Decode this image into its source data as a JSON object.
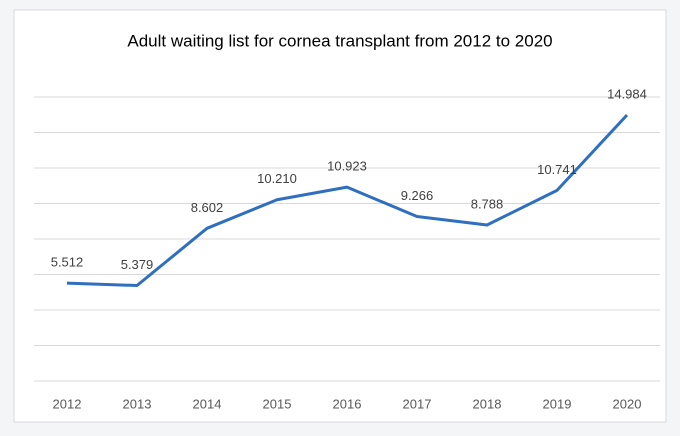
{
  "chart_data": {
    "type": "line",
    "title": "Adult waiting list for cornea transplant from 2012 to 2020",
    "categories": [
      "2012",
      "2013",
      "2014",
      "2015",
      "2016",
      "2017",
      "2018",
      "2019",
      "2020"
    ],
    "series": [
      {
        "color": "#2f6fbf",
        "values": [
          5.512,
          5.379,
          8.602,
          10.21,
          10.923,
          9.266,
          8.788,
          10.741,
          14.984
        ],
        "value_labels": [
          "5.512",
          "5.379",
          "8.602",
          "10.210",
          "10.923",
          "9.266",
          "8.788",
          "10.741",
          "14.984"
        ]
      }
    ],
    "ylim": [
      0,
      16
    ],
    "yticks": [
      0,
      2,
      4,
      6,
      8,
      10,
      12,
      14,
      16
    ],
    "grid": true
  }
}
